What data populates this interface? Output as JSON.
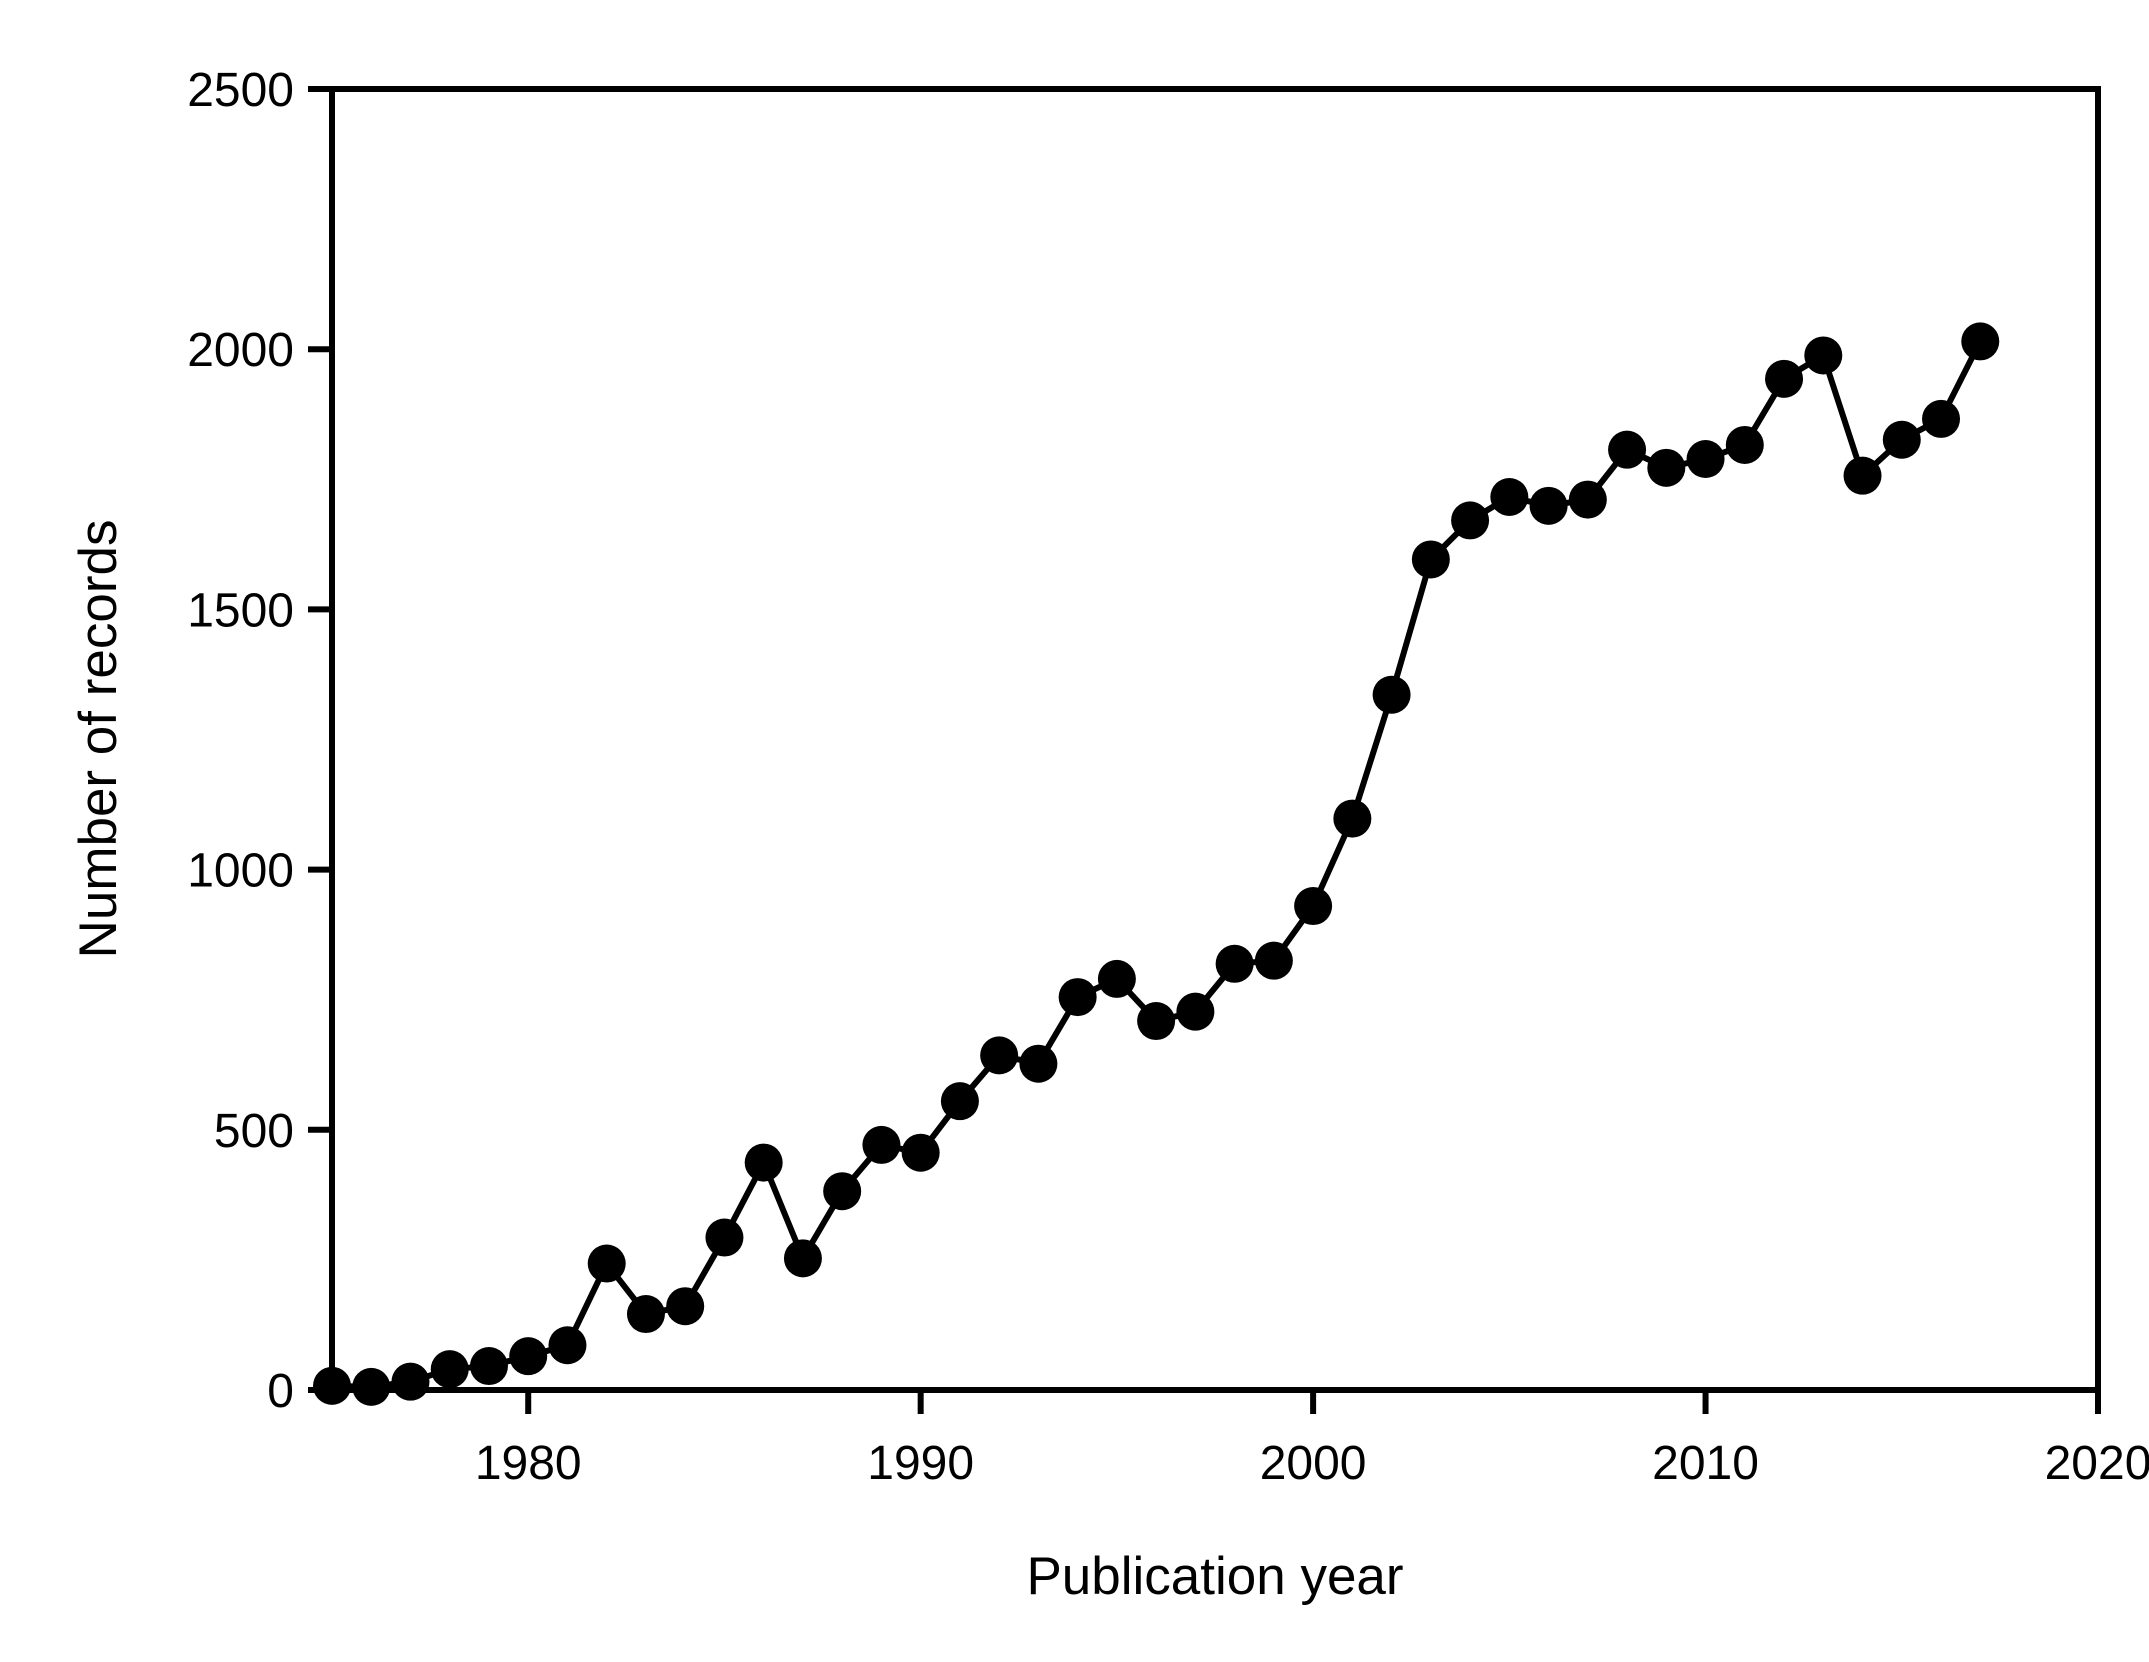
{
  "figure": {
    "background_color": "#ffffff",
    "ink_color": "#000000"
  },
  "chart_data": {
    "type": "line",
    "title": "",
    "xlabel": "Publication year",
    "ylabel": "Number of records",
    "series_name": "Number of records",
    "marker": "filled-circle",
    "line_color": "#000000",
    "marker_color": "#000000",
    "grid": false,
    "legend": "none",
    "xlim": [
      1975,
      2020
    ],
    "ylim": [
      0,
      2500
    ],
    "x_ticks": [
      1980,
      1990,
      2000,
      2010,
      2020
    ],
    "y_ticks": [
      0,
      500,
      1000,
      1500,
      2000,
      2500
    ],
    "x": [
      1975,
      1976,
      1977,
      1978,
      1979,
      1980,
      1981,
      1982,
      1983,
      1984,
      1985,
      1986,
      1987,
      1988,
      1989,
      1990,
      1991,
      1992,
      1993,
      1994,
      1995,
      1996,
      1997,
      1998,
      1999,
      2000,
      2001,
      2002,
      2003,
      2004,
      2005,
      2006,
      2007,
      2008,
      2009,
      2010,
      2011,
      2012,
      2013,
      2014,
      2015,
      2016,
      2017
    ],
    "values": [
      8,
      6,
      16,
      40,
      46,
      65,
      86,
      243,
      146,
      161,
      293,
      437,
      253,
      382,
      471,
      456,
      555,
      643,
      627,
      755,
      790,
      709,
      727,
      819,
      825,
      930,
      1098,
      1336,
      1596,
      1671,
      1716,
      1699,
      1711,
      1807,
      1772,
      1789,
      1816,
      1943,
      1988,
      1757,
      1826,
      1866,
      2015
    ]
  }
}
